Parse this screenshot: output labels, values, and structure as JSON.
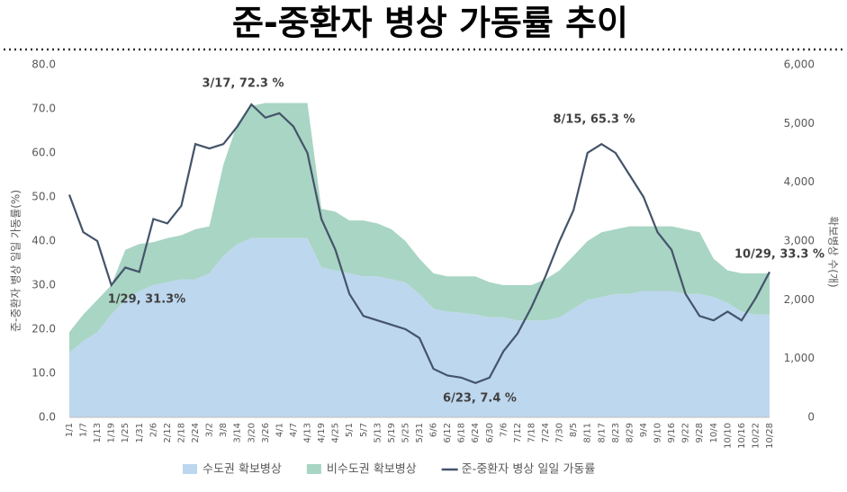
{
  "chart_data": {
    "type": "area_line",
    "title": "준-중환자 병상 가동률 추이",
    "y_label": "준-중환자 병상 일일 가동률(%)",
    "y2_label": "확보병상 수(개)",
    "annotations": [
      "3/17, 72.3 %",
      "1/29, 31.3%",
      "6/23, 7.4 %",
      "8/15, 65.3 %",
      "10/29, 33.3 %"
    ],
    "categories": [
      "1/1",
      "1/7",
      "1/13",
      "1/19",
      "1/25",
      "1/31",
      "2/6",
      "2/12",
      "2/18",
      "2/24",
      "3/2",
      "3/8",
      "3/14",
      "3/20",
      "3/26",
      "4/1",
      "4/7",
      "4/13",
      "4/19",
      "4/25",
      "5/1",
      "5/7",
      "5/13",
      "5/19",
      "5/25",
      "5/31",
      "6/6",
      "6/12",
      "6/18",
      "6/24",
      "6/30",
      "7/6",
      "7/12",
      "7/18",
      "7/24",
      "7/30",
      "8/5",
      "8/11",
      "8/17",
      "8/23",
      "8/29",
      "9/4",
      "9/10",
      "9/16",
      "9/22",
      "9/28",
      "10/4",
      "10/10",
      "10/16",
      "10/22",
      "10/28"
    ],
    "series": [
      {
        "name": "수도권 확보병상",
        "color": "#bdd7ee",
        "axis": "y2",
        "stack": true,
        "values": [
          1100,
          1300,
          1450,
          1750,
          2000,
          2150,
          2250,
          2300,
          2350,
          2350,
          2450,
          2750,
          2950,
          3050,
          3050,
          3050,
          3050,
          3050,
          2550,
          2500,
          2450,
          2400,
          2400,
          2350,
          2300,
          2100,
          1850,
          1800,
          1780,
          1750,
          1700,
          1700,
          1650,
          1650,
          1650,
          1700,
          1850,
          2000,
          2050,
          2100,
          2100,
          2150,
          2150,
          2150,
          2100,
          2100,
          2050,
          1950,
          1800,
          1750,
          1750
        ]
      },
      {
        "name": "비수도권 확보병상",
        "color": "#a9d5c4",
        "axis": "y2",
        "stack": true,
        "values": [
          350,
          450,
          550,
          500,
          850,
          800,
          730,
          750,
          750,
          850,
          800,
          1550,
          2050,
          2250,
          2300,
          2300,
          2300,
          2300,
          1000,
          1000,
          900,
          950,
          900,
          850,
          700,
          600,
          600,
          600,
          620,
          650,
          600,
          550,
          600,
          600,
          700,
          800,
          900,
          1000,
          1100,
          1100,
          1150,
          1100,
          1100,
          1100,
          1100,
          1050,
          650,
          550,
          650,
          700,
          700
        ]
      },
      {
        "name": "준-중환자 병상 일일 가동률",
        "color": "#44546a",
        "axis": "y",
        "values": [
          50.5,
          42,
          40,
          30,
          34,
          33,
          45,
          44,
          48,
          62,
          61,
          62,
          66,
          71,
          68,
          69,
          66,
          60,
          45,
          38,
          28,
          23,
          22,
          21,
          20,
          18,
          11,
          9.5,
          9,
          7.8,
          9,
          15,
          19,
          25,
          32,
          40,
          47,
          60,
          62,
          60,
          55,
          50,
          42,
          38,
          28,
          23,
          22,
          24,
          22,
          27,
          33
        ]
      }
    ],
    "ylim": [
      0,
      80
    ],
    "yticks": [
      {
        "value": 0,
        "label": "0.0"
      },
      {
        "value": 10,
        "label": "10.0"
      },
      {
        "value": 20,
        "label": "20.0"
      },
      {
        "value": 30,
        "label": "30.0"
      },
      {
        "value": 40,
        "label": "40.0"
      },
      {
        "value": 50,
        "label": "50.0"
      },
      {
        "value": 60,
        "label": "60.0"
      },
      {
        "value": 70,
        "label": "70.0"
      },
      {
        "value": 80,
        "label": "80.0"
      }
    ],
    "y2lim": [
      0,
      6000
    ],
    "y2ticks": [
      0,
      {
        "value": 1000,
        "label": "1,000"
      },
      {
        "value": 2000,
        "label": "2,000"
      },
      {
        "value": 3000,
        "label": "3,000"
      },
      {
        "value": 4000,
        "label": "4,000"
      },
      {
        "value": 5000,
        "label": "5,000"
      },
      {
        "value": 6000,
        "label": "6,000"
      }
    ]
  }
}
